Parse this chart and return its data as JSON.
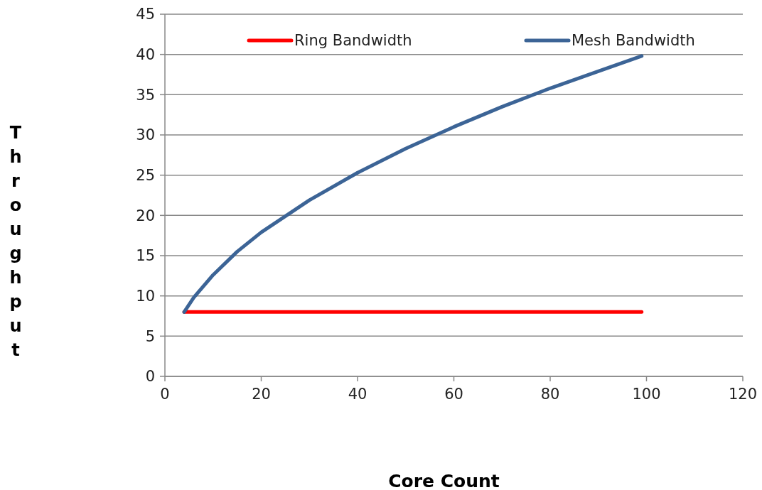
{
  "chart_data": {
    "type": "line",
    "xlabel": "Core Count",
    "ylabel": "Throughput",
    "xlim": [
      0,
      120
    ],
    "xticks": [
      0,
      20,
      40,
      60,
      80,
      100,
      120
    ],
    "ylim": [
      0,
      45
    ],
    "yticks": [
      0,
      5,
      10,
      15,
      20,
      25,
      30,
      35,
      40,
      45
    ],
    "grid": "y",
    "legend": "top",
    "marker": "none",
    "series": [
      {
        "name": "Ring Bandwidth",
        "color": "#ff0000",
        "x": [
          4,
          99
        ],
        "values": [
          8,
          8
        ]
      },
      {
        "name": "Mesh Bandwidth",
        "color": "#3c6496",
        "x": [
          4,
          6,
          10,
          15,
          20,
          30,
          40,
          50,
          60,
          70,
          80,
          90,
          99
        ],
        "values": [
          8,
          9.8,
          12.6,
          15.5,
          17.9,
          21.9,
          25.3,
          28.3,
          31,
          33.5,
          35.8,
          37.9,
          39.8
        ]
      }
    ]
  }
}
